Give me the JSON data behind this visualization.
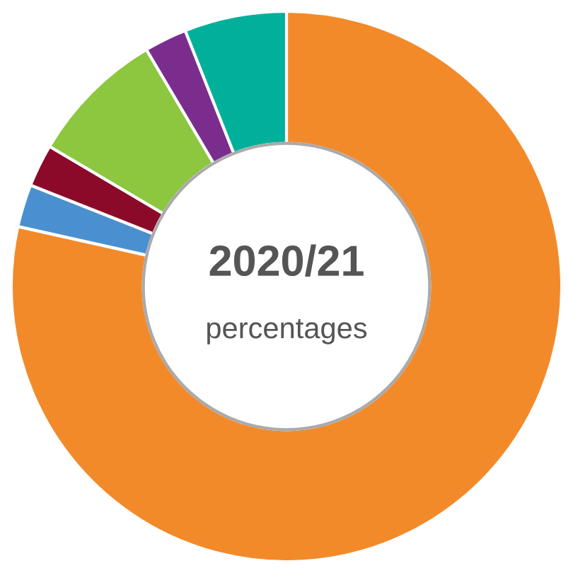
{
  "chart_data": {
    "type": "donut",
    "title": "2020/21",
    "subtitle": "percentages",
    "categories": [
      null,
      null,
      null,
      null,
      null,
      null
    ],
    "values": [
      78.5,
      2.5,
      2.5,
      8,
      2.5,
      6
    ],
    "colors": [
      "#f28a2a",
      "#4a90d0",
      "#8b0a2a",
      "#8dc63f",
      "#7b2d8e",
      "#00b09b"
    ]
  }
}
